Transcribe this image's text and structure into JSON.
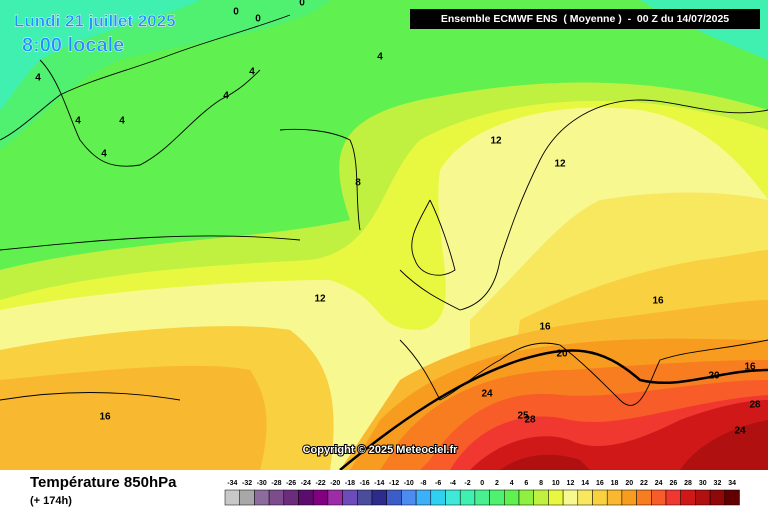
{
  "header": {
    "date": "Lundi 21 juillet 2025",
    "time": "8:00 locale",
    "run": "Ensemble ECMWF ENS  ( Moyenne )  -  00 Z du 14/07/2025"
  },
  "footer": {
    "title": "Température 850hPa",
    "lead": "(+ 174h)",
    "copyright": "Copyright © 2025 Meteociel.fr"
  },
  "contour_labels": [
    0,
    0,
    0,
    4,
    4,
    4,
    4,
    4,
    4,
    4,
    8,
    12,
    12,
    12,
    16,
    16,
    16,
    16,
    20,
    20,
    24,
    24,
    25,
    28,
    28
  ],
  "legend": {
    "values": [
      -34,
      -32,
      -30,
      -28,
      -26,
      -24,
      -22,
      -20,
      -18,
      -16,
      -14,
      -12,
      -10,
      -8,
      -6,
      -4,
      -2,
      0,
      2,
      4,
      6,
      8,
      10,
      12,
      14,
      16,
      18,
      20,
      22,
      24,
      26,
      28,
      30,
      32,
      34
    ],
    "colors": [
      "#c8c8c8",
      "#a8a8a8",
      "#8c6c9c",
      "#7c4c8c",
      "#6c2c7c",
      "#5c0c6c",
      "#800080",
      "#9c2ca8",
      "#6c4cb8",
      "#4c4c9c",
      "#2c2c8c",
      "#3c5cc8",
      "#4c8cf0",
      "#3cb0f8",
      "#30d0f0",
      "#40e8d8",
      "#40f0b0",
      "#48f090",
      "#50f070",
      "#60f050",
      "#90f040",
      "#c0f040",
      "#e8f840",
      "#f8f890",
      "#f8e860",
      "#f8d040",
      "#f8b830",
      "#f89c20",
      "#f87c20",
      "#f85c28",
      "#f03830",
      "#d01818",
      "#b01010",
      "#900808",
      "#600000"
    ]
  }
}
